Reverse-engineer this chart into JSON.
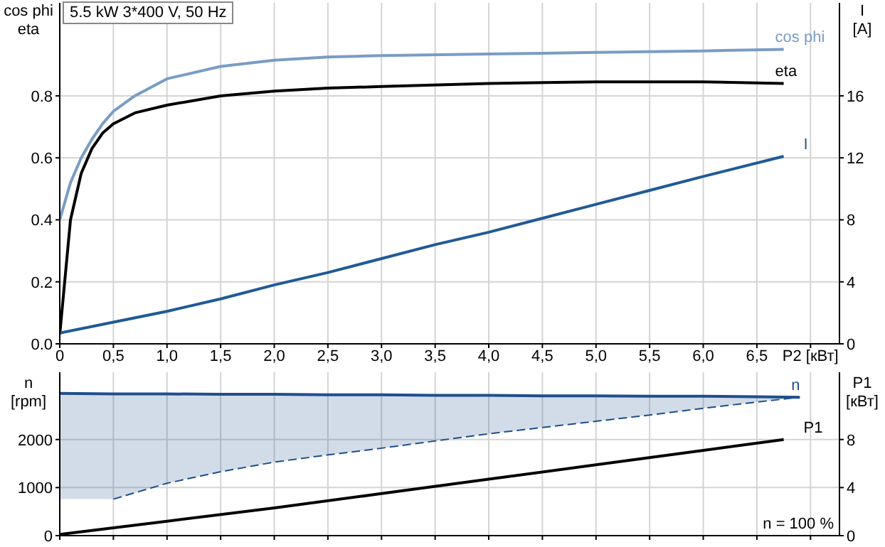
{
  "chart_data": [
    {
      "type": "line",
      "title": "5.5 kW   3*400 V, 50 Hz",
      "ylabel": "cos phi\neta",
      "y2label": "I\n[A]",
      "grid": true,
      "xlim": [
        0,
        7.27
      ],
      "xticks": [
        0,
        {
          "value": 0.5,
          "label": "0,5"
        },
        {
          "value": 1,
          "label": "1,0"
        },
        {
          "value": 1.5,
          "label": "1,5"
        },
        {
          "value": 2,
          "label": "2,0"
        },
        {
          "value": 2.5,
          "label": "2,5"
        },
        {
          "value": 3,
          "label": "3,0"
        },
        {
          "value": 3.5,
          "label": "3,5"
        },
        {
          "value": 4,
          "label": "4,0"
        },
        {
          "value": 4.5,
          "label": "4,5"
        },
        {
          "value": 5,
          "label": "5,0"
        },
        {
          "value": 5.5,
          "label": "5,5"
        },
        {
          "value": 6,
          "label": "6,0"
        },
        {
          "value": 6.5,
          "label": "6,5"
        },
        {
          "value": 7,
          "label": "P2 [кВт]"
        }
      ],
      "ylim": [
        0,
        1.1
      ],
      "yticks": [
        {
          "value": 0,
          "label": "0.0"
        },
        0.2,
        0.4,
        0.6,
        0.8
      ],
      "y2lim": [
        0,
        22
      ],
      "y2ticks": [
        0,
        4,
        8,
        12,
        16
      ],
      "series": [
        {
          "name": "cos phi",
          "color": "#7a9cc4",
          "x": [
            0,
            0.1,
            0.2,
            0.3,
            0.4,
            0.5,
            0.7,
            1,
            1.5,
            2,
            2.5,
            3,
            4,
            5,
            6,
            6.75
          ],
          "values": [
            0.4,
            0.52,
            0.6,
            0.66,
            0.71,
            0.75,
            0.8,
            0.855,
            0.895,
            0.915,
            0.925,
            0.93,
            0.935,
            0.94,
            0.945,
            0.95
          ]
        },
        {
          "name": "eta",
          "color": "#000000",
          "x": [
            0,
            0.1,
            0.2,
            0.3,
            0.4,
            0.5,
            0.7,
            1,
            1.5,
            2,
            2.5,
            3,
            4,
            5,
            6,
            6.75
          ],
          "values": [
            0.03,
            0.4,
            0.55,
            0.63,
            0.68,
            0.71,
            0.745,
            0.77,
            0.8,
            0.815,
            0.825,
            0.83,
            0.84,
            0.845,
            0.845,
            0.84
          ]
        },
        {
          "name": "I",
          "color": "#1f5a96",
          "axis": "y2",
          "x": [
            0,
            0.5,
            1,
            1.5,
            2,
            2.5,
            3,
            3.5,
            4,
            4.5,
            5,
            5.5,
            6,
            6.75
          ],
          "values": [
            0.7,
            1.4,
            2.1,
            2.9,
            3.8,
            4.6,
            5.5,
            6.4,
            7.2,
            8.1,
            9,
            9.9,
            10.8,
            12.1
          ]
        }
      ]
    },
    {
      "type": "line",
      "ylabel": "n\n[rpm]",
      "y2label": "P1\n[кВт]",
      "grid": true,
      "tick_labels": "y",
      "xlim": [
        0,
        7.27
      ],
      "xticks": [
        0,
        0.5,
        1,
        1.5,
        2,
        2.5,
        3,
        3.5,
        4,
        4.5,
        5,
        5.5,
        6,
        6.5,
        7
      ],
      "ylim": [
        0,
        3400
      ],
      "yticks": [
        0,
        1000,
        2000
      ],
      "y2lim": [
        0,
        13.6
      ],
      "y2ticks": [
        0,
        4,
        8
      ],
      "annotations": [
        "n = 100 %"
      ],
      "series": [
        {
          "name": "n",
          "color": "#1f4e8c",
          "x": [
            0,
            0.5,
            1,
            1.5,
            2,
            2.5,
            3,
            3.5,
            4,
            4.5,
            5,
            5.5,
            6,
            6.5,
            6.9
          ],
          "values": [
            2960,
            2950,
            2950,
            2940,
            2940,
            2930,
            2930,
            2920,
            2920,
            2910,
            2910,
            2900,
            2900,
            2890,
            2880
          ],
          "lower": [
            760,
            760,
            1090,
            1330,
            1530,
            1680,
            1820,
            1970,
            2120,
            2250,
            2380,
            2510,
            2650,
            2780,
            2880
          ],
          "upper": [
            2960,
            2950,
            2950,
            2940,
            2940,
            2930,
            2930,
            2920,
            2920,
            2910,
            2910,
            2900,
            2900,
            2890,
            2880
          ]
        },
        {
          "color": "#1f4e8c",
          "line_style": "dashed",
          "x": [
            0.5,
            1,
            1.5,
            2,
            2.5,
            3,
            3.5,
            4,
            4.5,
            5,
            5.5,
            6,
            6.5,
            6.9
          ],
          "values": [
            760,
            1090,
            1330,
            1530,
            1680,
            1820,
            1970,
            2120,
            2250,
            2380,
            2510,
            2650,
            2780,
            2880
          ]
        },
        {
          "name": "P1",
          "color": "#000000",
          "axis": "y2",
          "x": [
            0,
            1,
            2,
            3,
            4,
            5,
            6,
            6.75
          ],
          "values": [
            0.1,
            1.2,
            2.3,
            3.5,
            4.7,
            5.9,
            7.1,
            8
          ]
        }
      ]
    }
  ]
}
